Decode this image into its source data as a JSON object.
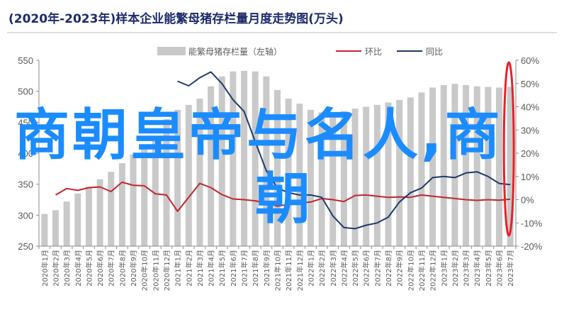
{
  "chart_data": {
    "type": "bar",
    "title": "(2020年-2023年)样本企业能繁母猪存栏量月度走势图(万头)",
    "legend_placement": "top-center",
    "grid": false,
    "categories": [
      "2020年1月",
      "2020年2月",
      "2020年3月",
      "2020年4月",
      "2020年5月",
      "2020年6月",
      "2020年7月",
      "2020年8月",
      "2020年9月",
      "2020年10月",
      "2020年11月",
      "2020年12月",
      "2021年1月",
      "2021年2月",
      "2021年3月",
      "2021年4月",
      "2021年5月",
      "2021年6月",
      "2021年7月",
      "2021年8月",
      "2021年9月",
      "2021年10月",
      "2021年11月",
      "2021年12月",
      "2022年1月",
      "2022年2月",
      "2022年3月",
      "2022年4月",
      "2022年5月",
      "2022年6月",
      "2022年7月",
      "2022年8月",
      "2022年9月",
      "2022年10月",
      "2022年11月",
      "2022年12月",
      "2023年1月",
      "2023年2月",
      "2023年3月",
      "2023年4月",
      "2023年5月",
      "2023年6月",
      "2023年7月"
    ],
    "ylim": [
      250,
      550
    ],
    "yticks": [
      "250",
      "300",
      "350",
      "400",
      "450",
      "500",
      "550"
    ],
    "y2lim": [
      -20,
      60
    ],
    "y2ticks": [
      "-20%",
      "-10%",
      "0%",
      "10%",
      "20%",
      "30%",
      "40%",
      "50%",
      "60%"
    ],
    "series": [
      {
        "name": "能繁母猪存栏量（左轴）",
        "kind": "bar",
        "axis": "left",
        "color": "#c9c9c9",
        "values": [
          302,
          308,
          322,
          335,
          346,
          358,
          370,
          384,
          398,
          412,
          425,
          455,
          470,
          478,
          488,
          508,
          524,
          532,
          533,
          532,
          524,
          502,
          488,
          480,
          470,
          466,
          465,
          468,
          472,
          475,
          478,
          482,
          486,
          490,
          498,
          506,
          510,
          512,
          510,
          508,
          507,
          506,
          507
        ]
      },
      {
        "name": "环比",
        "kind": "line",
        "axis": "right",
        "unit": "%",
        "color": "#c0272d",
        "values": [
          null,
          2.0,
          4.8,
          4.0,
          5.2,
          5.5,
          3.5,
          7.5,
          6.2,
          6.0,
          2.5,
          2.0,
          -5.0,
          1.0,
          7.0,
          5.2,
          2.2,
          0.3,
          0.0,
          -0.5,
          -1.5,
          -2.8,
          -2.0,
          -1.5,
          -1.0,
          0.5,
          0.0,
          -0.8,
          1.8,
          2.0,
          1.5,
          1.0,
          1.2,
          1.0,
          2.0,
          1.5,
          1.0,
          0.5,
          0.0,
          -0.3,
          0.0,
          -0.2,
          0.2
        ]
      },
      {
        "name": "同比",
        "kind": "line",
        "axis": "right",
        "unit": "%",
        "color": "#1f3a6e",
        "values": [
          null,
          null,
          null,
          null,
          null,
          null,
          null,
          null,
          null,
          null,
          null,
          null,
          51,
          49,
          52.5,
          55,
          50,
          43,
          38,
          25,
          12.5,
          5,
          3,
          2,
          2,
          1,
          -7,
          -12,
          -12.5,
          -11,
          -10,
          -7.5,
          -1,
          3,
          5,
          9.5,
          10,
          9.5,
          11.5,
          12,
          10,
          7,
          6.5
        ]
      }
    ],
    "highlight_category": "2023年7月",
    "highlight_color": "#e8202a"
  },
  "overlay_text": {
    "line1": "商朝皇帝与名人,商",
    "line2": "朝",
    "color": "#1a8cff"
  }
}
